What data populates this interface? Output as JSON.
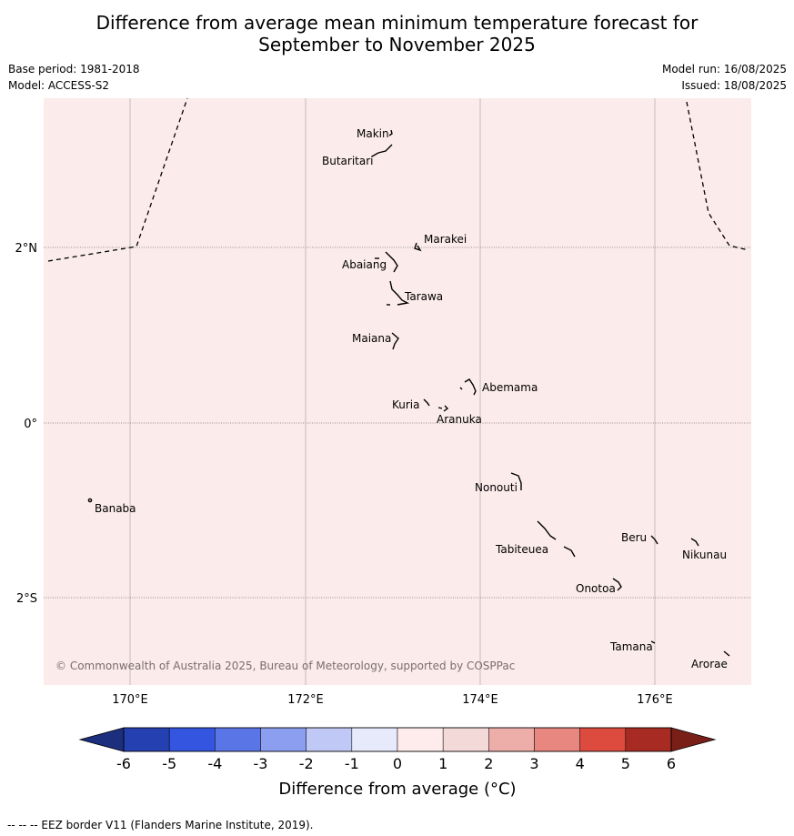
{
  "title": {
    "line1": "Difference from average mean minimum temperature forecast for",
    "line2": "September to November 2025"
  },
  "meta": {
    "base_period": "Base period: 1981-2018",
    "model": "Model: ACCESS-S2",
    "model_run": "Model run: 16/08/2025",
    "issued": "Issued: 18/08/2025"
  },
  "map": {
    "background_color": "#fbebea",
    "x_ticks": [
      "170°E",
      "172°E",
      "174°E",
      "176°E"
    ],
    "y_ticks": [
      "2°N",
      "0°",
      "2°S"
    ],
    "islands": {
      "makin": "Makin",
      "butaritari": "Butaritari",
      "marakei": "Marakei",
      "abaiang": "Abaiang",
      "tarawa": "Tarawa",
      "maiana": "Maiana",
      "abemama": "Abemama",
      "kuria": "Kuria",
      "aranuka": "Aranuka",
      "nonouti": "Nonouti",
      "banaba": "Banaba",
      "beru": "Beru",
      "nikunau": "Nikunau",
      "tabiteuea": "Tabiteuea",
      "onotoa": "Onotoa",
      "tamana": "Tamana",
      "arorae": "Arorae"
    },
    "copyright": "© Commonwealth of Australia 2025, Bureau of Meteorology, supported by COSPPac"
  },
  "colorbar": {
    "ticks": [
      "-6",
      "-5",
      "-4",
      "-3",
      "-2",
      "-1",
      "0",
      "1",
      "2",
      "3",
      "4",
      "5",
      "6"
    ],
    "colors": [
      "#2540b0",
      "#3355e0",
      "#5a75e6",
      "#8c9ef0",
      "#c0c9f5",
      "#e6eafb",
      "#fdeceb",
      "#f3d9d7",
      "#edaeaa",
      "#e8877f",
      "#dc4b3d",
      "#a72b22"
    ],
    "low_extend_color": "#1c2f7e",
    "high_extend_color": "#7a1e18",
    "label": "Difference from average (°C)"
  },
  "footer": {
    "legend_text": "--  --  -- EEZ border V11 (Flanders Marine Institute, 2019)."
  }
}
